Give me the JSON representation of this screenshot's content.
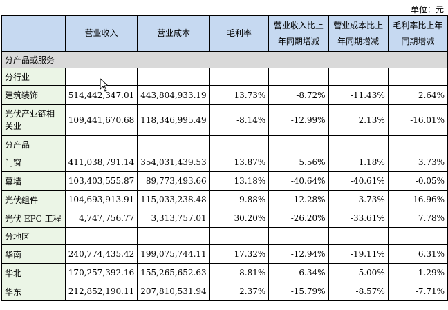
{
  "unit_label": "单位：元",
  "headers": [
    "",
    "营业收入",
    "营业成本",
    "毛利率",
    "营业收入比上年同期增减",
    "营业成本比上年同期增减",
    "毛利率比上年同期增减"
  ],
  "section_label": "分产品或服务",
  "rows": [
    {
      "label": "分行业",
      "values": [
        "",
        "",
        "",
        "",
        "",
        ""
      ]
    },
    {
      "label": "建筑装饰",
      "values": [
        "514,442,347.01",
        "443,804,933.19",
        "13.73%",
        "-8.72%",
        "-11.43%",
        "2.64%"
      ]
    },
    {
      "label": "光伏产业链相关业",
      "values": [
        "109,441,670.68",
        "118,346,995.49",
        "-8.14%",
        "-12.99%",
        "2.13%",
        "-16.01%"
      ]
    },
    {
      "label": "分产品",
      "values": [
        "",
        "",
        "",
        "",
        "",
        ""
      ]
    },
    {
      "label": "门窗",
      "values": [
        "411,038,791.14",
        "354,031,439.53",
        "13.87%",
        "5.56%",
        "1.18%",
        "3.73%"
      ]
    },
    {
      "label": "幕墙",
      "values": [
        "103,403,555.87",
        "89,773,493.66",
        "13.18%",
        "-40.64%",
        "-40.61%",
        "-0.05%"
      ]
    },
    {
      "label": "光伏组件",
      "values": [
        "104,693,913.91",
        "115,033,238.48",
        "-9.88%",
        "-12.28%",
        "3.73%",
        "-16.96%"
      ]
    },
    {
      "label": "光伏 EPC 工程",
      "values": [
        "4,747,756.77",
        "3,313,757.01",
        "30.20%",
        "-26.20%",
        "-33.61%",
        "7.78%"
      ]
    },
    {
      "label": "分地区",
      "values": [
        "",
        "",
        "",
        "",
        "",
        ""
      ]
    },
    {
      "label": "华南",
      "values": [
        "240,774,435.42",
        "199,075,744.11",
        "17.32%",
        "-12.94%",
        "-19.11%",
        "6.31%"
      ]
    },
    {
      "label": "华北",
      "values": [
        "170,257,392.16",
        "155,265,652.63",
        "8.81%",
        "-6.34%",
        "-5.00%",
        "-1.29%"
      ]
    },
    {
      "label": "华东",
      "values": [
        "212,852,190.11",
        "207,810,531.94",
        "2.37%",
        "-15.79%",
        "-8.57%",
        "-7.71%"
      ]
    }
  ]
}
